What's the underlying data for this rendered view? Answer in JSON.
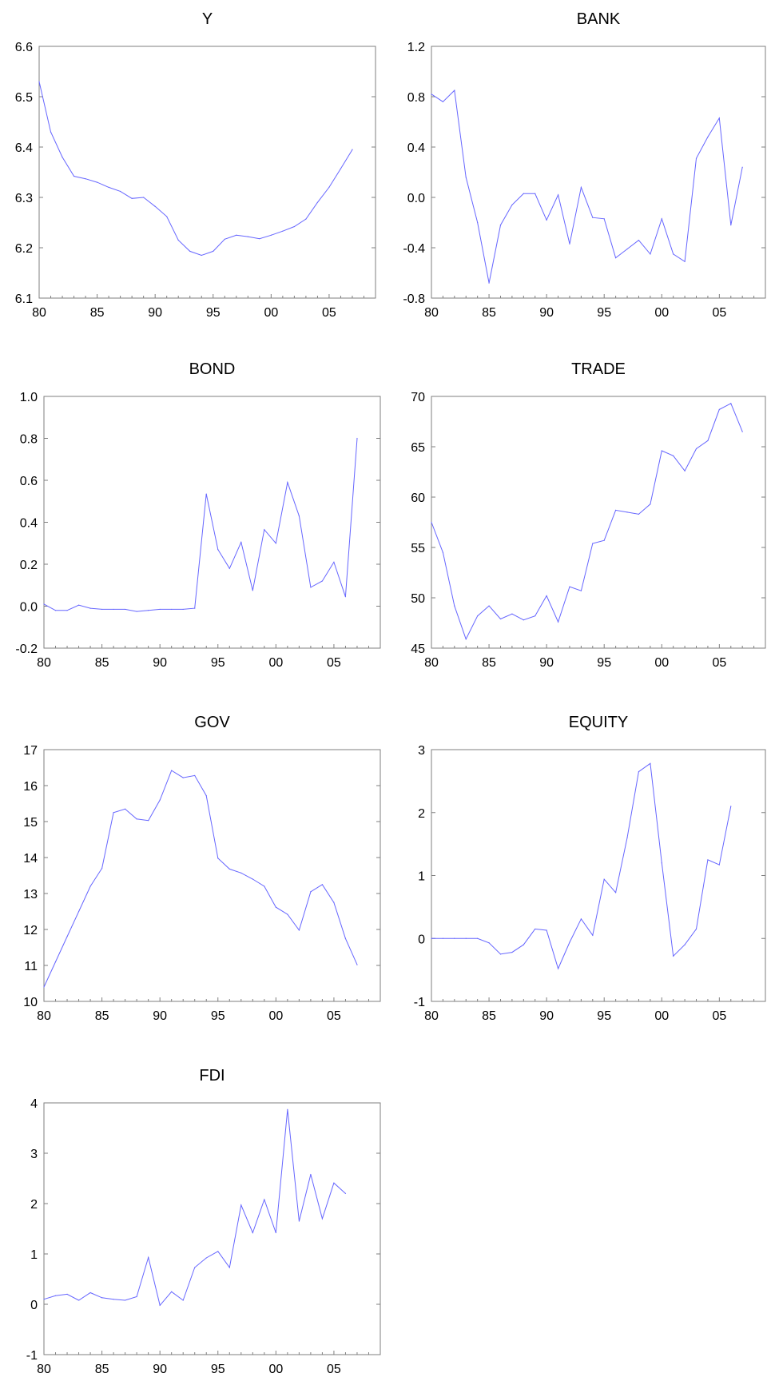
{
  "colors": {
    "series": "#6666ff",
    "frame": "#7f7f7f",
    "text": "#000000"
  },
  "chart_data": [
    {
      "type": "line",
      "title": "Y",
      "x_ticks": [
        "80",
        "85",
        "90",
        "95",
        "00",
        "05"
      ],
      "y_ticks": [
        "6.1",
        "6.2",
        "6.3",
        "6.4",
        "6.5",
        "6.6"
      ],
      "ylim": [
        6.1,
        6.6
      ],
      "xlim": [
        1980,
        2009
      ],
      "series": [
        {
          "x": [
            1980,
            1981,
            1982,
            1983,
            1984,
            1985,
            1986,
            1987,
            1988,
            1989,
            1990,
            1991,
            1992,
            1993,
            1994,
            1995,
            1996,
            1997,
            1998,
            1999,
            2000,
            2001,
            2002,
            2003,
            2004,
            2005,
            2006,
            2007
          ],
          "values": [
            6.53,
            6.43,
            6.38,
            6.342,
            6.337,
            6.33,
            6.32,
            6.312,
            6.298,
            6.3,
            6.282,
            6.262,
            6.215,
            6.193,
            6.185,
            6.193,
            6.217,
            6.225,
            6.222,
            6.218,
            6.225,
            6.233,
            6.242,
            6.257,
            6.29,
            6.32,
            6.357,
            6.395
          ]
        }
      ]
    },
    {
      "type": "line",
      "title": "BANK",
      "x_ticks": [
        "80",
        "85",
        "90",
        "95",
        "00",
        "05"
      ],
      "y_ticks": [
        "-0.8",
        "-0.4",
        "0.0",
        "0.4",
        "0.8",
        "1.2"
      ],
      "ylim": [
        -0.8,
        1.2
      ],
      "xlim": [
        1980,
        2009
      ],
      "series": [
        {
          "x": [
            1980,
            1981,
            1982,
            1983,
            1984,
            1985,
            1986,
            1987,
            1988,
            1989,
            1990,
            1991,
            1992,
            1993,
            1994,
            1995,
            1996,
            1997,
            1998,
            1999,
            2000,
            2001,
            2002,
            2003,
            2004,
            2005,
            2006,
            2007
          ],
          "values": [
            0.82,
            0.76,
            0.85,
            0.16,
            -0.2,
            -0.68,
            -0.22,
            -0.06,
            0.03,
            0.03,
            -0.18,
            0.02,
            -0.37,
            0.08,
            -0.16,
            -0.17,
            -0.48,
            -0.41,
            -0.34,
            -0.45,
            -0.17,
            -0.45,
            -0.51,
            0.31,
            0.48,
            0.63,
            -0.22,
            0.24
          ]
        }
      ]
    },
    {
      "type": "line",
      "title": "BOND",
      "x_ticks": [
        "80",
        "85",
        "90",
        "95",
        "00",
        "05"
      ],
      "y_ticks": [
        "-0.2",
        "0.0",
        "0.2",
        "0.4",
        "0.6",
        "0.8",
        "1.0"
      ],
      "ylim": [
        -0.2,
        1.0
      ],
      "xlim": [
        1980,
        2009
      ],
      "series": [
        {
          "x": [
            1980,
            1981,
            1982,
            1983,
            1984,
            1985,
            1986,
            1987,
            1988,
            1989,
            1990,
            1991,
            1992,
            1993,
            1994,
            1995,
            1996,
            1997,
            1998,
            1999,
            2000,
            2001,
            2002,
            2003,
            2004,
            2005,
            2006,
            2007
          ],
          "values": [
            0.01,
            -0.02,
            -0.02,
            0.005,
            -0.01,
            -0.015,
            -0.015,
            -0.015,
            -0.025,
            -0.02,
            -0.015,
            -0.015,
            -0.015,
            -0.01,
            0.535,
            0.27,
            0.18,
            0.305,
            0.075,
            0.365,
            0.3,
            0.59,
            0.43,
            0.09,
            0.12,
            0.21,
            0.045,
            0.8
          ]
        }
      ]
    },
    {
      "type": "line",
      "title": "TRADE",
      "x_ticks": [
        "80",
        "85",
        "90",
        "95",
        "00",
        "05"
      ],
      "y_ticks": [
        "45",
        "50",
        "55",
        "60",
        "65",
        "70"
      ],
      "ylim": [
        45,
        70
      ],
      "xlim": [
        1980,
        2009
      ],
      "series": [
        {
          "x": [
            1980,
            1981,
            1982,
            1983,
            1984,
            1985,
            1986,
            1987,
            1988,
            1989,
            1990,
            1991,
            1992,
            1993,
            1994,
            1995,
            1996,
            1997,
            1998,
            1999,
            2000,
            2001,
            2002,
            2003,
            2004,
            2005,
            2006,
            2007
          ],
          "values": [
            57.5,
            54.5,
            49.2,
            45.9,
            48.2,
            49.2,
            47.9,
            48.4,
            47.8,
            48.2,
            50.2,
            47.6,
            51.1,
            50.7,
            55.4,
            55.7,
            58.7,
            58.5,
            58.3,
            59.3,
            64.6,
            64.1,
            62.6,
            64.8,
            65.6,
            68.7,
            69.3,
            66.5
          ]
        }
      ]
    },
    {
      "type": "line",
      "title": "GOV",
      "x_ticks": [
        "80",
        "85",
        "90",
        "95",
        "00",
        "05"
      ],
      "y_ticks": [
        "10",
        "11",
        "12",
        "13",
        "14",
        "15",
        "16",
        "17"
      ],
      "ylim": [
        10,
        17
      ],
      "xlim": [
        1980,
        2009
      ],
      "series": [
        {
          "x": [
            1980,
            1981,
            1982,
            1983,
            1984,
            1985,
            1986,
            1987,
            1988,
            1989,
            1990,
            1991,
            1992,
            1993,
            1994,
            1995,
            1996,
            1997,
            1998,
            1999,
            2000,
            2001,
            2002,
            2003,
            2004,
            2005,
            2006,
            2007
          ],
          "values": [
            10.4,
            11.1,
            11.8,
            12.5,
            13.2,
            13.7,
            15.25,
            15.35,
            15.07,
            15.03,
            15.6,
            16.42,
            16.22,
            16.28,
            15.72,
            13.98,
            13.68,
            13.57,
            13.4,
            13.2,
            12.62,
            12.42,
            11.98,
            13.05,
            13.25,
            12.75,
            11.75,
            11.02
          ]
        }
      ]
    },
    {
      "type": "line",
      "title": "EQUITY",
      "x_ticks": [
        "80",
        "85",
        "90",
        "95",
        "00",
        "05"
      ],
      "y_ticks": [
        "-1",
        "0",
        "1",
        "2",
        "3"
      ],
      "ylim": [
        -1,
        3
      ],
      "xlim": [
        1980,
        2009
      ],
      "series": [
        {
          "x": [
            1980,
            1981,
            1982,
            1983,
            1984,
            1985,
            1986,
            1987,
            1988,
            1989,
            1990,
            1991,
            1992,
            1993,
            1994,
            1995,
            1996,
            1997,
            1998,
            1999,
            2000,
            2001,
            2002,
            2003,
            2004,
            2005,
            2006
          ],
          "values": [
            0,
            0,
            0,
            0,
            0,
            -0.07,
            -0.25,
            -0.22,
            -0.1,
            0.15,
            0.13,
            -0.48,
            -0.06,
            0.31,
            0.05,
            0.94,
            0.73,
            1.6,
            2.65,
            2.78,
            1.2,
            -0.28,
            -0.1,
            0.15,
            1.25,
            1.17,
            2.1
          ]
        }
      ]
    },
    {
      "type": "line",
      "title": "FDI",
      "x_ticks": [
        "80",
        "85",
        "90",
        "95",
        "00",
        "05"
      ],
      "y_ticks": [
        "-1",
        "0",
        "1",
        "2",
        "3",
        "4"
      ],
      "ylim": [
        -1,
        4
      ],
      "xlim": [
        1980,
        2009
      ],
      "series": [
        {
          "x": [
            1980,
            1981,
            1982,
            1983,
            1984,
            1985,
            1986,
            1987,
            1988,
            1989,
            1990,
            1991,
            1992,
            1993,
            1994,
            1995,
            1996,
            1997,
            1998,
            1999,
            2000,
            2001,
            2002,
            2003,
            2004,
            2005,
            2006
          ],
          "values": [
            0.1,
            0.17,
            0.2,
            0.08,
            0.23,
            0.13,
            0.1,
            0.08,
            0.15,
            0.93,
            -0.02,
            0.25,
            0.08,
            0.73,
            0.92,
            1.05,
            0.73,
            1.97,
            1.42,
            2.08,
            1.42,
            3.87,
            1.65,
            2.58,
            1.7,
            2.41,
            2.2
          ]
        }
      ]
    }
  ]
}
